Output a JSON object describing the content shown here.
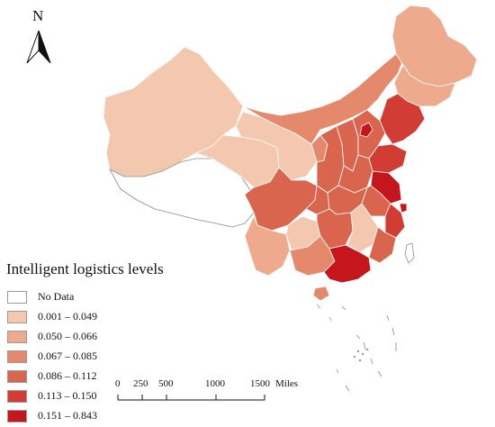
{
  "legend": {
    "title": "Intelligent logistics levels",
    "classes": [
      {
        "label": "No Data",
        "color": "#ffffff"
      },
      {
        "label": "0.001 – 0.049",
        "color": "#f4c8ae"
      },
      {
        "label": "0.050 – 0.066",
        "color": "#eeaa8c"
      },
      {
        "label": "0.067 – 0.085",
        "color": "#e4896b"
      },
      {
        "label": "0.086 – 0.112",
        "color": "#da654f"
      },
      {
        "label": "0.113 – 0.150",
        "color": "#d13d34"
      },
      {
        "label": "0.151 – 0.843",
        "color": "#c4161c"
      }
    ]
  },
  "north_arrow": {
    "letter": "N"
  },
  "scale_bar": {
    "ticks": [
      "0",
      "250",
      "500",
      "1000",
      "1500"
    ],
    "unit": "Miles"
  },
  "colors": {
    "outline": "#ffffff",
    "no_data_stroke": "#8c8c8c",
    "islands": "#8c8c8c"
  }
}
